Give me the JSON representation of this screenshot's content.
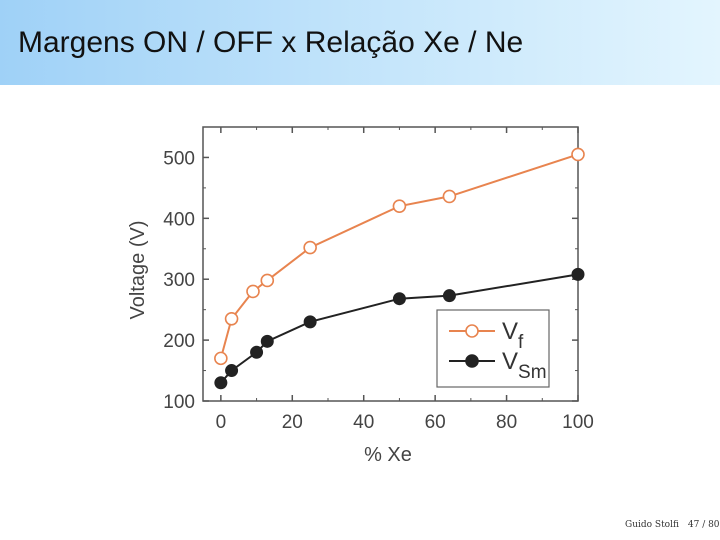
{
  "slide": {
    "title": "Margens ON / OFF x Relação Xe / Ne",
    "author": "Guido Stolfi",
    "page": "47 / 80"
  },
  "chart_data": {
    "type": "line",
    "xlabel": "% Xe",
    "ylabel": "Voltage (V)",
    "xlim": [
      -5,
      100
    ],
    "ylim": [
      100,
      550
    ],
    "xticks": [
      0,
      20,
      40,
      60,
      80,
      100
    ],
    "yticks": [
      100,
      200,
      300,
      400,
      500
    ],
    "grid": false,
    "legend": "bottom-right",
    "series": [
      {
        "name": "V",
        "subscript": "f",
        "color": "#e8844f",
        "marker": "open-circle",
        "x": [
          0,
          3,
          9,
          13,
          25,
          50,
          64,
          100
        ],
        "y": [
          170,
          235,
          280,
          298,
          352,
          420,
          436,
          505
        ]
      },
      {
        "name": "V",
        "subscript": "Sm",
        "color": "#222222",
        "marker": "filled-circle",
        "x": [
          0,
          3,
          10,
          13,
          25,
          50,
          64,
          100
        ],
        "y": [
          130,
          150,
          180,
          198,
          230,
          268,
          273,
          308
        ]
      }
    ]
  }
}
